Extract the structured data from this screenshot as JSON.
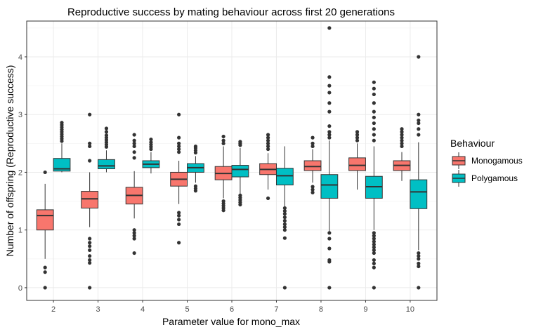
{
  "chart_data": {
    "type": "boxplot",
    "title": "Reproductive success by mating behaviour across first 20 generations",
    "xlabel": "Parameter value for mono_max",
    "ylabel": "Number of offspring (Reproductive success)",
    "categories": [
      "2",
      "3",
      "4",
      "5",
      "6",
      "7",
      "8",
      "9",
      "10"
    ],
    "ylim": [
      -0.22,
      4.62
    ],
    "yticks": [
      0,
      1,
      2,
      3,
      4
    ],
    "grid": true,
    "legend": {
      "title": "Behaviour",
      "position": "right"
    },
    "series": [
      {
        "name": "Monogamous",
        "color": "#F8766D",
        "boxes": [
          {
            "min": 0.5,
            "q1": 1.0,
            "median": 1.25,
            "q3": 1.35,
            "max": 1.8,
            "outliers": [
              2.0,
              0.35,
              0.27,
              0.0
            ]
          },
          {
            "min": 1.05,
            "q1": 1.38,
            "median": 1.54,
            "q3": 1.67,
            "max": 2.0,
            "outliers": [
              3.0,
              2.5,
              2.45,
              2.2,
              0.85,
              0.78,
              0.72,
              0.65,
              0.55,
              0.48,
              0.43,
              0.0
            ]
          },
          {
            "min": 1.2,
            "q1": 1.45,
            "median": 1.6,
            "q3": 1.74,
            "max": 2.02,
            "outliers": [
              2.65,
              2.55,
              2.5,
              2.45,
              2.35,
              2.25,
              1.0,
              0.95,
              0.9,
              0.85,
              0.6
            ]
          },
          {
            "min": 1.45,
            "q1": 1.76,
            "median": 1.88,
            "q3": 2.0,
            "max": 2.2,
            "outliers": [
              3.0,
              2.6,
              2.5,
              2.45,
              2.4,
              2.35,
              1.3,
              1.25,
              1.18,
              1.1,
              0.78
            ]
          },
          {
            "min": 1.55,
            "q1": 1.87,
            "median": 1.98,
            "q3": 2.1,
            "max": 2.45,
            "outliers": [
              2.62,
              2.55,
              2.5,
              1.5,
              1.46,
              1.42,
              1.38,
              1.34
            ]
          },
          {
            "min": 1.7,
            "q1": 1.96,
            "median": 2.05,
            "q3": 2.15,
            "max": 2.33,
            "outliers": [
              2.65,
              2.6,
              2.55,
              2.5,
              2.45,
              2.4,
              1.55
            ]
          },
          {
            "min": 1.82,
            "q1": 2.03,
            "median": 2.1,
            "q3": 2.2,
            "max": 2.4,
            "outliers": [
              2.6,
              2.5,
              2.45,
              1.75,
              1.7,
              1.65
            ]
          },
          {
            "min": 1.7,
            "q1": 2.03,
            "median": 2.12,
            "q3": 2.25,
            "max": 2.5,
            "outliers": [
              2.7,
              2.65,
              2.6,
              2.55
            ]
          },
          {
            "min": 1.85,
            "q1": 2.03,
            "median": 2.12,
            "q3": 2.2,
            "max": 2.35,
            "outliers": [
              2.75,
              2.7,
              2.65,
              2.6,
              2.55,
              2.5,
              2.45
            ]
          }
        ]
      },
      {
        "name": "Polygamous",
        "color": "#00BFC4",
        "boxes": [
          {
            "min": 2.0,
            "q1": 2.02,
            "median": 2.06,
            "q3": 2.24,
            "max": 2.5,
            "outliers": [
              2.86,
              2.82,
              2.78,
              2.74,
              2.7,
              2.66,
              2.62,
              2.58,
              2.54
            ]
          },
          {
            "min": 2.0,
            "q1": 2.06,
            "median": 2.11,
            "q3": 2.22,
            "max": 2.38,
            "outliers": [
              2.76,
              2.7,
              2.64,
              2.6,
              2.56,
              2.52,
              2.48,
              2.44
            ]
          },
          {
            "min": 1.98,
            "q1": 2.08,
            "median": 2.14,
            "q3": 2.2,
            "max": 2.35,
            "outliers": [
              2.57,
              2.52,
              2.48,
              2.44,
              2.4
            ]
          },
          {
            "min": 1.82,
            "q1": 2.0,
            "median": 2.08,
            "q3": 2.15,
            "max": 2.28,
            "outliers": [
              2.45,
              2.42,
              2.38,
              2.34,
              1.76,
              1.72,
              1.68
            ]
          },
          {
            "min": 1.6,
            "q1": 1.92,
            "median": 2.05,
            "q3": 2.12,
            "max": 2.42,
            "outliers": [
              2.53,
              2.5,
              2.47,
              1.6,
              1.56,
              1.52,
              1.48,
              1.44
            ]
          },
          {
            "min": 1.4,
            "q1": 1.78,
            "median": 1.94,
            "q3": 2.07,
            "max": 2.45,
            "outliers": [
              1.38,
              1.33,
              1.28,
              1.22,
              1.16,
              1.1,
              1.05,
              1.0,
              0.86,
              0.0
            ]
          },
          {
            "min": 0.97,
            "q1": 1.55,
            "median": 1.78,
            "q3": 1.96,
            "max": 2.55,
            "outliers": [
              4.5,
              3.65,
              3.5,
              3.38,
              3.2,
              3.05,
              2.8,
              2.7,
              2.65,
              2.6,
              0.95,
              0.85,
              0.68,
              0.48,
              0.45,
              0.0
            ]
          },
          {
            "min": 1.0,
            "q1": 1.55,
            "median": 1.75,
            "q3": 1.93,
            "max": 2.45,
            "outliers": [
              3.56,
              3.45,
              3.35,
              3.2,
              3.05,
              2.95,
              2.85,
              2.75,
              2.65,
              2.55,
              0.95,
              0.9,
              0.85,
              0.8,
              0.75,
              0.7,
              0.65,
              0.6,
              0.48,
              0.42,
              0.35,
              0.0
            ]
          },
          {
            "min": 0.65,
            "q1": 1.37,
            "median": 1.66,
            "q3": 1.87,
            "max": 2.52,
            "outliers": [
              4.0,
              3.0,
              2.9,
              2.85,
              2.75,
              2.65,
              0.6,
              0.55,
              0.5,
              0.42,
              0.37,
              0.0
            ]
          }
        ]
      }
    ]
  }
}
